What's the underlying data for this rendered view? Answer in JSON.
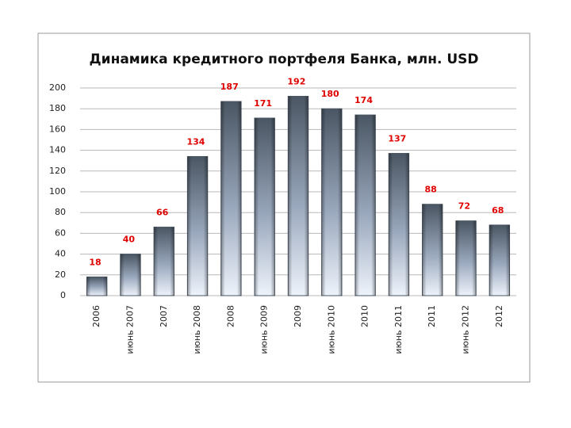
{
  "chart_data": {
    "type": "bar",
    "title": "Динамика кредитного портфеля Банка, млн. USD",
    "categories": [
      "2006",
      "июнь 2007",
      "2007",
      "июнь 2008",
      "2008",
      "июнь 2009",
      "2009",
      "июнь 2010",
      "2010",
      "июнь 2011",
      "2011",
      "июнь 2012",
      "2012"
    ],
    "values": [
      18,
      40,
      66,
      134,
      187,
      171,
      192,
      180,
      174,
      137,
      88,
      72,
      68
    ],
    "color": "#4a5663",
    "ylim": [
      0,
      200
    ],
    "yticks": [
      0,
      20,
      40,
      60,
      80,
      100,
      120,
      140,
      160,
      180,
      200
    ],
    "grid": true
  }
}
